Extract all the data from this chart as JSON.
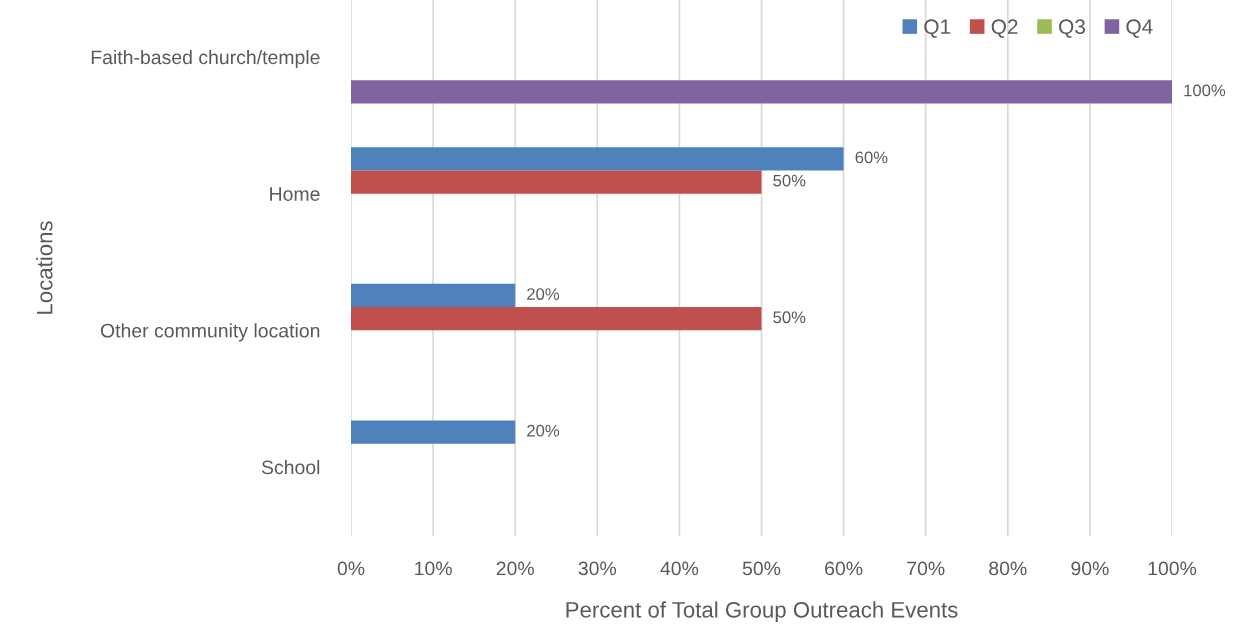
{
  "chart_data": {
    "type": "bar",
    "orientation": "horizontal",
    "categories": [
      "Faith-based church/temple",
      "Home",
      "Other community location",
      "School"
    ],
    "series": [
      {
        "name": "Q1",
        "color": "#4f81bd",
        "values": [
          null,
          60,
          20,
          20
        ],
        "value_labels": [
          null,
          "60%",
          "20%",
          "20%"
        ]
      },
      {
        "name": "Q2",
        "color": "#c0504d",
        "values": [
          null,
          50,
          50,
          null
        ],
        "value_labels": [
          null,
          "50%",
          "50%",
          null
        ]
      },
      {
        "name": "Q3",
        "color": "#9bbb59",
        "values": [
          null,
          null,
          null,
          null
        ]
      },
      {
        "name": "Q4",
        "color": "#8064a2",
        "values": [
          100,
          null,
          null,
          null
        ],
        "value_labels": [
          "100%",
          null,
          null,
          null
        ]
      }
    ],
    "xlabel": "Percent of Total Group Outreach Events",
    "ylabel": "Locations",
    "xlim": [
      0,
      100
    ],
    "xticks": [
      {
        "value": 0,
        "label": "0%"
      },
      {
        "value": 10,
        "label": "10%"
      },
      {
        "value": 20,
        "label": "20%"
      },
      {
        "value": 30,
        "label": "30%"
      },
      {
        "value": 40,
        "label": "40%"
      },
      {
        "value": 50,
        "label": "50%"
      },
      {
        "value": 60,
        "label": "60%"
      },
      {
        "value": 70,
        "label": "70%"
      },
      {
        "value": 80,
        "label": "80%"
      },
      {
        "value": 90,
        "label": "90%"
      },
      {
        "value": 100,
        "label": "100%"
      }
    ],
    "grid": "x",
    "legend": "top right"
  }
}
